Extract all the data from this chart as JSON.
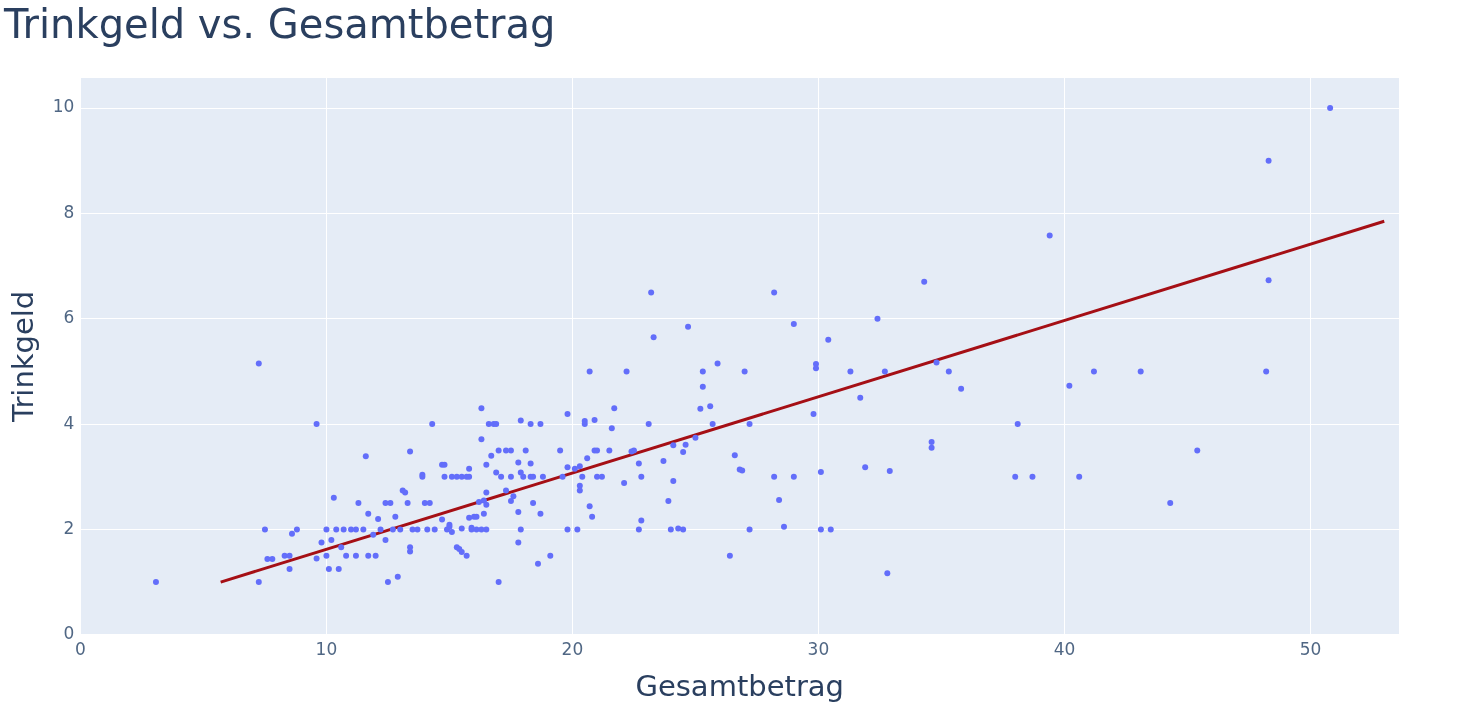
{
  "chart_data": {
    "type": "scatter",
    "title": "Trinkgeld vs. Gesamtbetrag",
    "xlabel": "Gesamtbetrag",
    "ylabel": "Trinkgeld",
    "xlim": [
      0,
      53.6
    ],
    "ylim": [
      0,
      10.57
    ],
    "xticks": [
      0,
      10,
      20,
      30,
      40,
      50
    ],
    "yticks": [
      0,
      2,
      4,
      6,
      8,
      10
    ],
    "grid": true,
    "legend": false,
    "marker": "circle",
    "series": [
      {
        "type": "scatter",
        "color": "#636efa",
        "x": [
          3.07,
          7.25,
          7.25,
          7.5,
          7.6,
          7.8,
          8.3,
          8.5,
          8.5,
          8.6,
          8.8,
          9.6,
          9.6,
          9.8,
          10.0,
          10.0,
          10.1,
          10.2,
          10.3,
          10.4,
          10.5,
          10.6,
          10.7,
          10.8,
          11.0,
          11.2,
          11.2,
          11.3,
          11.5,
          11.6,
          11.7,
          11.7,
          11.9,
          12.0,
          12.1,
          12.2,
          12.4,
          12.4,
          12.5,
          12.6,
          12.7,
          12.8,
          12.9,
          13.0,
          13.1,
          13.2,
          13.3,
          13.4,
          13.4,
          13.4,
          13.5,
          13.7,
          13.9,
          13.9,
          14.0,
          14.1,
          14.2,
          14.3,
          14.4,
          14.7,
          14.7,
          14.8,
          14.8,
          14.9,
          15.0,
          15.0,
          15.1,
          15.1,
          15.3,
          15.3,
          15.4,
          15.5,
          15.5,
          15.5,
          15.7,
          15.7,
          15.8,
          15.8,
          15.8,
          15.9,
          15.9,
          16.0,
          16.1,
          16.1,
          16.2,
          16.3,
          16.3,
          16.3,
          16.4,
          16.4,
          16.5,
          16.5,
          16.5,
          16.5,
          16.6,
          16.7,
          16.8,
          16.9,
          16.9,
          17.0,
          17.0,
          17.1,
          17.3,
          17.3,
          17.5,
          17.5,
          17.5,
          17.6,
          17.8,
          17.8,
          17.8,
          17.9,
          17.9,
          17.9,
          18.0,
          18.1,
          18.3,
          18.3,
          18.3,
          18.4,
          18.4,
          18.6,
          18.7,
          18.7,
          18.8,
          19.1,
          19.5,
          19.6,
          19.8,
          19.8,
          19.8,
          20.1,
          20.2,
          20.3,
          20.3,
          20.3,
          20.4,
          20.5,
          20.5,
          20.6,
          20.7,
          20.7,
          20.8,
          20.9,
          20.9,
          21.0,
          21.0,
          21.2,
          21.5,
          21.6,
          21.7,
          22.1,
          22.2,
          22.4,
          22.5,
          22.7,
          22.7,
          22.8,
          22.8,
          23.1,
          23.2,
          23.3,
          23.7,
          23.9,
          24.0,
          24.1,
          24.1,
          24.3,
          24.5,
          24.5,
          24.6,
          24.7,
          25.0,
          25.2,
          25.3,
          25.3,
          25.6,
          25.7,
          25.9,
          26.4,
          26.6,
          26.8,
          26.9,
          27.0,
          27.2,
          27.2,
          28.2,
          28.2,
          28.4,
          28.6,
          29.0,
          29.0,
          29.8,
          29.9,
          29.9,
          30.1,
          30.1,
          30.4,
          30.5,
          31.3,
          31.7,
          31.9,
          32.4,
          32.7,
          32.8,
          32.9,
          34.3,
          34.6,
          34.6,
          34.8,
          35.3,
          35.8,
          38.0,
          38.1,
          38.7,
          39.4,
          40.2,
          40.6,
          41.2,
          43.1,
          44.3,
          45.4,
          48.2,
          48.3,
          48.3,
          50.8
        ],
        "values": [
          1.0,
          1.0,
          5.15,
          2.0,
          1.44,
          1.44,
          1.5,
          1.5,
          1.25,
          1.92,
          2.0,
          4.0,
          1.45,
          1.75,
          1.5,
          2.0,
          1.25,
          1.8,
          2.6,
          2.0,
          1.25,
          1.66,
          2.0,
          1.5,
          2.0,
          1.5,
          2.0,
          2.5,
          2.0,
          3.39,
          2.3,
          1.5,
          1.9,
          1.5,
          2.2,
          2.0,
          1.8,
          2.5,
          1.0,
          2.5,
          2.0,
          2.24,
          1.1,
          2.0,
          2.74,
          2.7,
          2.5,
          3.48,
          1.66,
          1.58,
          2.0,
          2.0,
          3.04,
          3.0,
          2.5,
          2.0,
          2.5,
          4.0,
          2.0,
          3.23,
          2.19,
          3.0,
          3.23,
          2.0,
          2.09,
          2.05,
          3.0,
          1.95,
          3.0,
          1.66,
          1.63,
          3.0,
          2.02,
          1.57,
          3.0,
          1.5,
          3.0,
          3.15,
          2.22,
          2.03,
          2.0,
          2.24,
          2.24,
          2.0,
          2.52,
          2.0,
          4.3,
          3.71,
          2.55,
          2.3,
          2.7,
          3.23,
          2.47,
          2.0,
          4.0,
          3.4,
          4.0,
          4.0,
          3.08,
          3.5,
          1.0,
          3.0,
          3.5,
          2.74,
          3.5,
          2.54,
          3.0,
          2.63,
          3.27,
          2.33,
          1.75,
          4.07,
          3.08,
          2.0,
          3.0,
          3.5,
          4.0,
          3.25,
          3.0,
          3.0,
          2.5,
          1.35,
          4.0,
          2.3,
          3.0,
          1.5,
          3.5,
          3.0,
          4.19,
          3.18,
          2.0,
          3.15,
          2.0,
          3.2,
          2.83,
          2.74,
          3.0,
          4.06,
          4.0,
          3.35,
          5.0,
          2.44,
          2.24,
          4.08,
          3.5,
          3.5,
          3.0,
          3.0,
          3.5,
          3.92,
          4.3,
          2.88,
          5.0,
          3.48,
          3.5,
          3.25,
          2.0,
          3.0,
          2.17,
          4.0,
          6.5,
          5.65,
          3.3,
          2.54,
          2.0,
          3.6,
          2.92,
          2.02,
          3.47,
          2.0,
          3.61,
          5.85,
          3.74,
          4.29,
          4.71,
          5.0,
          4.34,
          4.0,
          5.15,
          1.5,
          3.41,
          3.14,
          3.12,
          5.0,
          4.0,
          2.0,
          6.5,
          3.0,
          2.56,
          2.05,
          5.9,
          3.0,
          4.19,
          5.14,
          5.06,
          3.09,
          2.0,
          5.6,
          2.0,
          5.0,
          4.5,
          3.18,
          6.0,
          5.0,
          1.17,
          3.11,
          6.7,
          3.66,
          3.55,
          5.17,
          5.0,
          4.67,
          3.0,
          4.0,
          3.0,
          7.58,
          4.73,
          3.0,
          5.0,
          5.0,
          2.5,
          3.5,
          5.0,
          9.0,
          6.73,
          10.0
        ]
      },
      {
        "type": "line",
        "color": "#a50f15",
        "marker": "none",
        "line_style": "solid",
        "x": [
          5.7,
          53.0
        ],
        "values": [
          1.0,
          7.85
        ]
      }
    ]
  }
}
